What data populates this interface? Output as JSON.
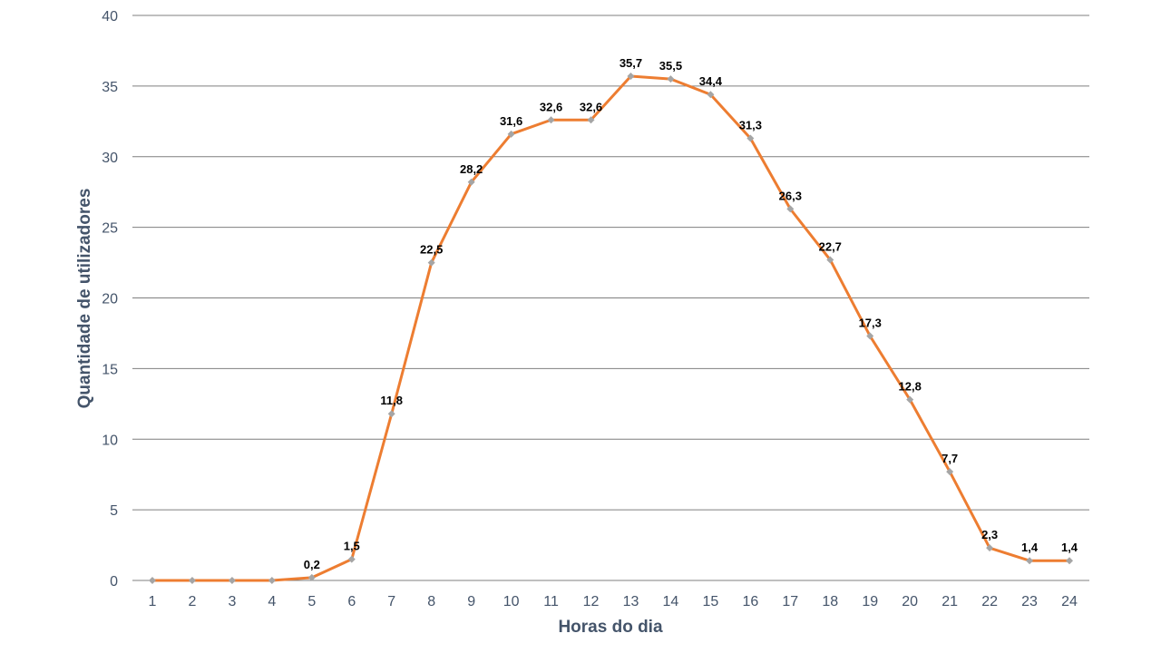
{
  "chart_data": {
    "type": "line",
    "title": "",
    "xlabel": "Horas do dia",
    "ylabel": "Quantidade de utilizadores",
    "ylim": [
      0,
      40
    ],
    "ytick_step": 5,
    "x": [
      "1",
      "2",
      "3",
      "4",
      "5",
      "6",
      "7",
      "8",
      "9",
      "10",
      "11",
      "12",
      "13",
      "14",
      "15",
      "16",
      "17",
      "18",
      "19",
      "20",
      "21",
      "22",
      "23",
      "24"
    ],
    "series": [
      {
        "values": [
          0,
          0,
          0,
          0,
          0.2,
          1.5,
          11.8,
          22.5,
          28.2,
          31.6,
          32.6,
          32.6,
          35.7,
          35.5,
          34.4,
          31.3,
          26.3,
          22.7,
          17.3,
          12.8,
          7.7,
          2.3,
          1.4,
          1.4
        ],
        "labels": [
          "",
          "",
          "",
          "",
          "0,2",
          "1,5",
          "11,8",
          "22,5",
          "28,2",
          "31,6",
          "32,6",
          "32,6",
          "35,7",
          "35,5",
          "34,4",
          "31,3",
          "26,3",
          "22,7",
          "17,3",
          "12,8",
          "7,7",
          "2,3",
          "1,4",
          "1,4"
        ],
        "color": "#ed7d31",
        "marker_color": "#a5a5a5"
      }
    ],
    "grid": true,
    "legend": "none"
  }
}
